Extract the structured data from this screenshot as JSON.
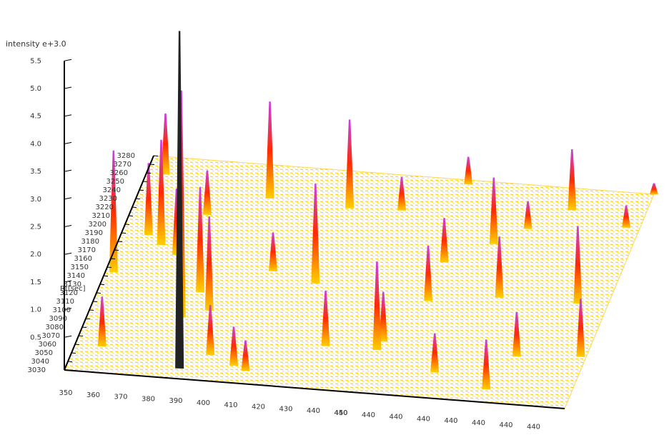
{
  "chart_data": {
    "type": "surface3d",
    "zlabel": "intensity e+3.0",
    "ylabel": "Rt[sec]",
    "zlim": [
      0,
      5.5
    ],
    "zticks": [
      0.5,
      {
        "value": 1,
        "label": "1.0"
      },
      1.5,
      {
        "value": 2,
        "label": "2.0"
      },
      2.5,
      {
        "value": 3,
        "label": "3.0"
      },
      3.5,
      {
        "value": 4,
        "label": "4.0"
      },
      4.5,
      {
        "value": 5,
        "label": "5.0"
      },
      5.5
    ],
    "ylim": [
      3030,
      3280
    ],
    "yticks": [
      3030,
      3040,
      3050,
      3060,
      3070,
      3080,
      3090,
      3100,
      3110,
      3120,
      3130,
      3140,
      3150,
      3160,
      3170,
      3180,
      3190,
      3200,
      3210,
      3220,
      3230,
      3240,
      3250,
      3260,
      3270,
      3280
    ],
    "xlim": [
      350,
      535
    ],
    "x_axis_labels": [
      [
        "350"
      ],
      [
        "360"
      ],
      [
        "370"
      ],
      [
        "380"
      ],
      [
        "390"
      ],
      [
        "400"
      ],
      [
        "410"
      ],
      [
        "420"
      ],
      [
        "430"
      ],
      [
        "440"
      ],
      [
        "440",
        "450"
      ],
      [
        "440"
      ],
      [
        "440"
      ],
      [
        "440"
      ],
      [
        "440"
      ],
      [
        "440"
      ],
      [
        "440"
      ],
      [
        "440"
      ]
    ],
    "colors": [
      "#ffd000",
      "#ff2a00",
      "#c840e8"
    ],
    "peaks": {
      "mz": [
        391,
        384,
        357,
        398,
        428,
        427,
        353,
        366,
        387,
        393,
        459,
        485,
        524,
        533,
        508,
        467,
        483,
        504,
        415,
        440,
        460,
        470,
        495,
        400,
        410,
        360,
        447,
        495,
        530,
        535,
        378,
        410,
        470,
        373,
        360,
        510
      ],
      "rt": [
        3042,
        3100,
        3260,
        3242,
        3238,
        3150,
        3145,
        3180,
        3130,
        3110,
        3080,
        3210,
        3150,
        3090,
        3255,
        3275,
        3060,
        3045,
        3045,
        3080,
        3090,
        3140,
        3150,
        3060,
        3050,
        3060,
        3240,
        3230,
        3240,
        3280,
        3218,
        3160,
        3185,
        3170,
        3190,
        3085
      ],
      "intensity": [
        6.1,
        4.1,
        1.1,
        1.75,
        1.6,
        1.8,
        2.2,
        1.9,
        1.9,
        1.7,
        1.6,
        1.2,
        1.4,
        1.05,
        1.1,
        0.5,
        0.7,
        0.9,
        0.55,
        1.0,
        0.9,
        1.0,
        1.1,
        0.9,
        0.7,
        0.9,
        0.6,
        0.5,
        0.4,
        0.2,
        0.8,
        0.7,
        0.8,
        1.2,
        1.3,
        0.8
      ]
    }
  }
}
